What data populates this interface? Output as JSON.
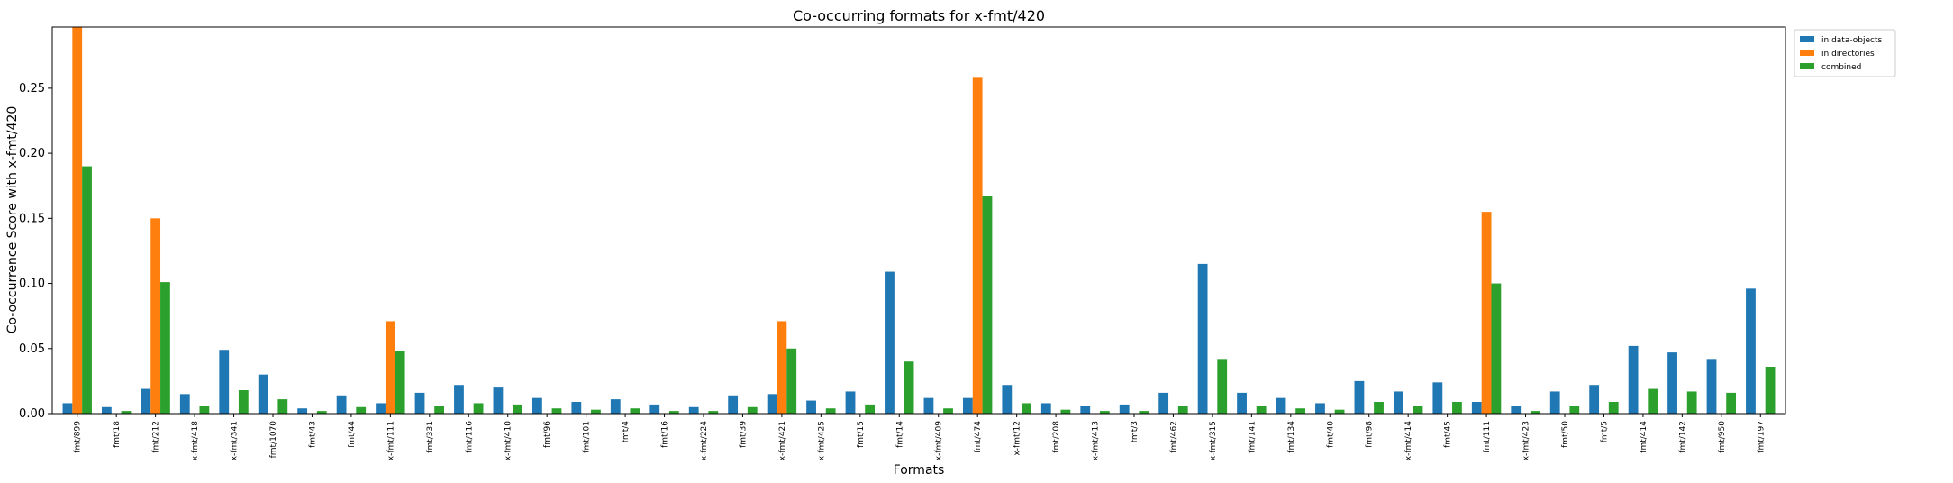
{
  "chart_data": {
    "type": "bar",
    "title": "Co-occurring formats for x-fmt/420",
    "xlabel": "Formats",
    "ylabel": "Co-occurrence Score with x-fmt/420",
    "ylim": [
      0,
      0.297
    ],
    "yticks": [
      "0.00",
      "0.05",
      "0.10",
      "0.15",
      "0.20",
      "0.25"
    ],
    "legend_position": "outside-top-right",
    "categories": [
      "fmt/899",
      "fmt/18",
      "fmt/212",
      "x-fmt/418",
      "x-fmt/341",
      "fmt/1070",
      "fmt/43",
      "fmt/44",
      "x-fmt/111",
      "fmt/331",
      "fmt/116",
      "x-fmt/410",
      "fmt/96",
      "fmt/101",
      "fmt/4",
      "fmt/16",
      "x-fmt/224",
      "fmt/39",
      "x-fmt/421",
      "x-fmt/425",
      "fmt/15",
      "fmt/14",
      "x-fmt/409",
      "fmt/474",
      "x-fmt/12",
      "fmt/208",
      "x-fmt/413",
      "fmt/3",
      "fmt/462",
      "x-fmt/315",
      "fmt/141",
      "fmt/134",
      "fmt/40",
      "fmt/98",
      "x-fmt/414",
      "fmt/45",
      "fmt/111",
      "x-fmt/423",
      "fmt/50",
      "fmt/5",
      "fmt/414",
      "fmt/142",
      "fmt/950",
      "fmt/197"
    ],
    "series": [
      {
        "name": "in data-objects",
        "color": "#1f77b4",
        "values": [
          0.008,
          0.005,
          0.019,
          0.015,
          0.049,
          0.03,
          0.004,
          0.014,
          0.008,
          0.016,
          0.022,
          0.02,
          0.012,
          0.009,
          0.011,
          0.007,
          0.005,
          0.014,
          0.015,
          0.01,
          0.017,
          0.109,
          0.012,
          0.012,
          0.022,
          0.008,
          0.006,
          0.007,
          0.016,
          0.115,
          0.016,
          0.012,
          0.008,
          0.025,
          0.017,
          0.024,
          0.009,
          0.006,
          0.017,
          0.022,
          0.052,
          0.047,
          0.042,
          0.096
        ]
      },
      {
        "name": "in directories",
        "color": "#ff7f0e",
        "values": [
          0.297,
          0.0,
          0.15,
          0.0,
          0.0,
          0.0,
          0.0,
          0.0,
          0.071,
          0.0,
          0.0,
          0.0,
          0.0,
          0.0,
          0.0,
          0.0,
          0.0,
          0.0,
          0.071,
          0.0,
          0.0,
          0.0,
          0.0,
          0.258,
          0.0,
          0.0,
          0.0,
          0.0,
          0.0,
          0.0,
          0.0,
          0.0,
          0.0,
          0.0,
          0.0,
          0.0,
          0.155,
          0.0,
          0.0,
          0.0,
          0.0,
          0.0,
          0.0,
          0.0
        ]
      },
      {
        "name": "combined",
        "color": "#2ca02c",
        "values": [
          0.19,
          0.002,
          0.101,
          0.006,
          0.018,
          0.011,
          0.002,
          0.005,
          0.048,
          0.006,
          0.008,
          0.007,
          0.004,
          0.003,
          0.004,
          0.002,
          0.002,
          0.005,
          0.05,
          0.004,
          0.007,
          0.04,
          0.004,
          0.167,
          0.008,
          0.003,
          0.002,
          0.002,
          0.006,
          0.042,
          0.006,
          0.004,
          0.003,
          0.009,
          0.006,
          0.009,
          0.1,
          0.002,
          0.006,
          0.009,
          0.019,
          0.017,
          0.016,
          0.036
        ]
      }
    ]
  }
}
